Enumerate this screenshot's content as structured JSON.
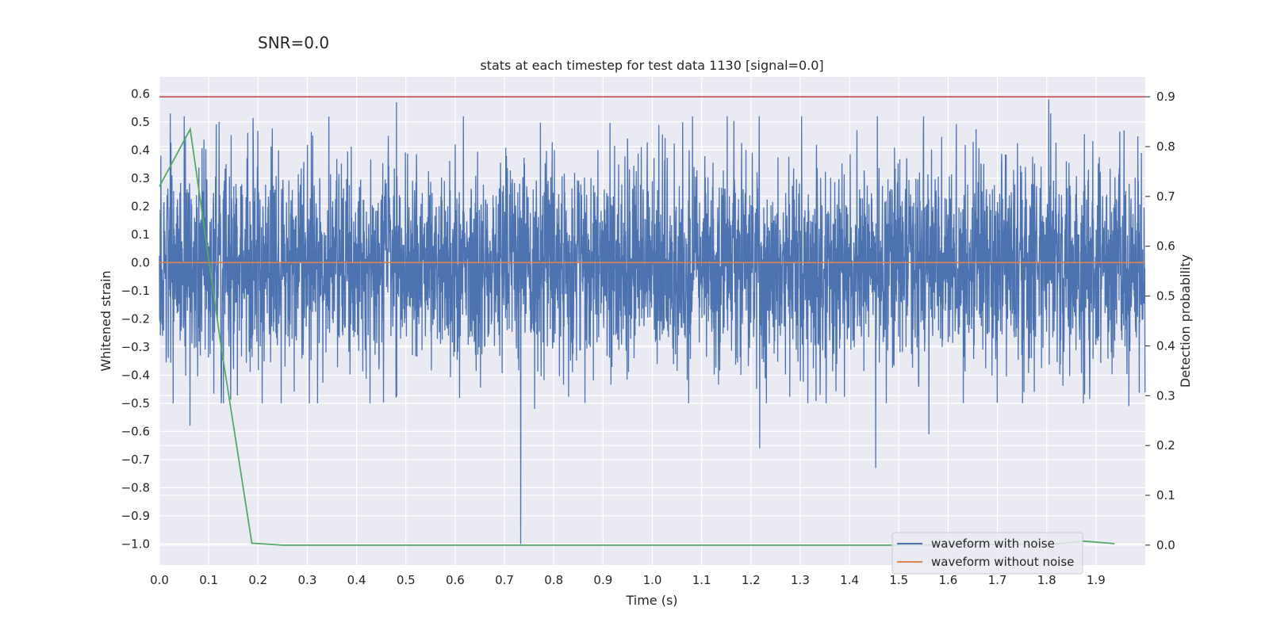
{
  "suptitle": "SNR=0.0",
  "chart_data": {
    "type": "line",
    "title": "stats at each timestep for test data 1130 [signal=0.0]",
    "xlabel": "Time (s)",
    "ylabel": "Whitened strain",
    "y2label": "Detection probability",
    "xlim": [
      0.0,
      2.0
    ],
    "ylim": [
      -1.075,
      0.66
    ],
    "y2lim": [
      -0.04,
      0.94
    ],
    "x_ticks": [
      0.0,
      0.1,
      0.2,
      0.3,
      0.4,
      0.5,
      0.6,
      0.7,
      0.8,
      0.9,
      1.0,
      1.1,
      1.2,
      1.3,
      1.4,
      1.5,
      1.6,
      1.7,
      1.8,
      1.9
    ],
    "x_tick_labels": [
      "0.0",
      "0.1",
      "0.2",
      "0.3",
      "0.4",
      "0.5",
      "0.6",
      "0.7",
      "0.8",
      "0.9",
      "1.0",
      "1.1",
      "1.2",
      "1.3",
      "1.4",
      "1.5",
      "1.6",
      "1.7",
      "1.8",
      "1.9"
    ],
    "y_ticks": [
      0.6,
      0.5,
      0.4,
      0.3,
      0.2,
      0.1,
      0.0,
      -0.1,
      -0.2,
      -0.3,
      -0.4,
      -0.5,
      -0.6,
      -0.7,
      -0.8,
      -0.9,
      -1.0
    ],
    "y_tick_labels": [
      "0.6",
      "0.5",
      "0.4",
      "0.3",
      "0.2",
      "0.1",
      "0.0",
      "−0.1",
      "−0.2",
      "−0.3",
      "−0.4",
      "−0.5",
      "−0.6",
      "−0.7",
      "−0.8",
      "−0.9",
      "−1.0"
    ],
    "y2_ticks": [
      0.9,
      0.8,
      0.7,
      0.6,
      0.5,
      0.4,
      0.3,
      0.2,
      0.1,
      0.0
    ],
    "y2_tick_labels": [
      "0.9",
      "0.8",
      "0.7",
      "0.6",
      "0.5",
      "0.4",
      "0.3",
      "0.2",
      "0.1",
      "0.0"
    ],
    "grid": true,
    "legend_placement": "lower-right",
    "series": [
      {
        "name": "waveform with noise",
        "color": "#4c72b0",
        "axis": "left",
        "sample_rate_hz": 2048,
        "noise_std": 0.18,
        "noise_seed": 1130,
        "spikes": [
          {
            "x": 0.003,
            "y": 0.38
          },
          {
            "x": 0.022,
            "y": 0.53
          },
          {
            "x": 0.062,
            "y": -0.58
          },
          {
            "x": 0.121,
            "y": 0.5
          },
          {
            "x": 0.481,
            "y": 0.57
          },
          {
            "x": 0.48,
            "y": -0.48
          },
          {
            "x": 0.731,
            "y": 0.28
          },
          {
            "x": 0.733,
            "y": -1.0
          },
          {
            "x": 0.761,
            "y": -0.52
          },
          {
            "x": 1.218,
            "y": -0.66
          },
          {
            "x": 1.453,
            "y": -0.73
          },
          {
            "x": 1.561,
            "y": -0.61
          },
          {
            "x": 1.804,
            "y": 0.58
          },
          {
            "x": 1.808,
            "y": 0.53
          },
          {
            "x": 1.957,
            "y": 0.47
          },
          {
            "x": 1.967,
            "y": -0.51
          }
        ]
      },
      {
        "name": "waveform without noise",
        "color": "#dd8452",
        "axis": "left",
        "x": [
          0.0,
          2.0
        ],
        "y": [
          0.0,
          0.0
        ]
      },
      {
        "color": "#55a868",
        "axis": "right",
        "x": [
          0.0,
          0.0625,
          0.125,
          0.1875,
          0.25,
          0.3125,
          0.5,
          1.0,
          1.5,
          1.8125,
          1.875,
          1.9375
        ],
        "y": [
          0.72,
          0.835,
          0.4,
          0.004,
          0.0,
          0.0,
          0.0,
          0.0,
          0.0,
          0.002,
          0.008,
          0.003
        ]
      }
    ],
    "threshold": {
      "axis": "right",
      "value": 0.9,
      "color": "#c44e52"
    }
  }
}
